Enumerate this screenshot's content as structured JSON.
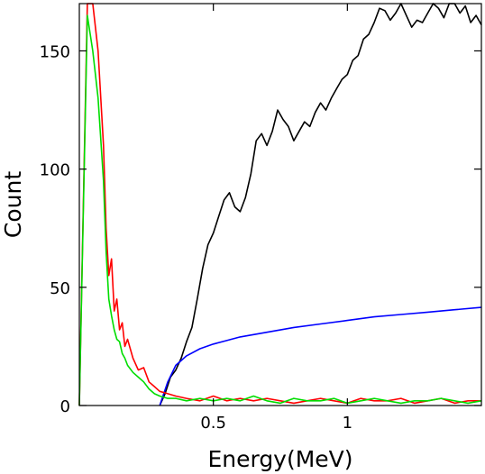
{
  "chart_data": {
    "type": "line",
    "title": "",
    "xlabel": "Energy(MeV)",
    "ylabel": "Count",
    "xlim": [
      0,
      1.5
    ],
    "ylim": [
      0,
      170
    ],
    "x_scale": "linear",
    "y_scale": "linear",
    "grid": false,
    "legend": "none",
    "x_ticks": [
      {
        "value": 0.5,
        "label": "0.5"
      },
      {
        "value": 1.0,
        "label": "1"
      }
    ],
    "y_ticks": [
      {
        "value": 0,
        "label": "0"
      },
      {
        "value": 50,
        "label": "50"
      },
      {
        "value": 100,
        "label": "100"
      },
      {
        "value": 150,
        "label": "150"
      }
    ],
    "series": [
      {
        "color": "#000000",
        "x": [
          0.3,
          0.32,
          0.34,
          0.36,
          0.38,
          0.4,
          0.42,
          0.44,
          0.46,
          0.48,
          0.5,
          0.52,
          0.54,
          0.56,
          0.58,
          0.6,
          0.62,
          0.64,
          0.66,
          0.68,
          0.7,
          0.72,
          0.74,
          0.76,
          0.78,
          0.8,
          0.82,
          0.84,
          0.86,
          0.88,
          0.9,
          0.92,
          0.94,
          0.96,
          0.98,
          1.0,
          1.02,
          1.04,
          1.06,
          1.08,
          1.1,
          1.12,
          1.14,
          1.16,
          1.18,
          1.2,
          1.22,
          1.24,
          1.26,
          1.28,
          1.3,
          1.32,
          1.34,
          1.36,
          1.38,
          1.4,
          1.42,
          1.44,
          1.46,
          1.48,
          1.5
        ],
        "y": [
          0,
          5,
          12,
          15,
          20,
          27,
          33,
          45,
          58,
          68,
          73,
          80,
          87,
          90,
          84,
          82,
          88,
          98,
          112,
          115,
          110,
          116,
          125,
          121,
          118,
          112,
          116,
          120,
          118,
          124,
          128,
          125,
          130,
          134,
          138,
          140,
          146,
          148,
          155,
          157,
          162,
          168,
          167,
          163,
          166,
          170,
          165,
          160,
          163,
          162,
          166,
          170,
          168,
          164,
          170,
          171,
          166,
          169,
          162,
          165,
          161
        ]
      },
      {
        "color": "#0000ff",
        "x": [
          0.3,
          0.33,
          0.36,
          0.4,
          0.45,
          0.5,
          0.55,
          0.6,
          0.7,
          0.8,
          0.9,
          1.0,
          1.1,
          1.2,
          1.3,
          1.4,
          1.5
        ],
        "y": [
          0,
          10,
          17,
          21,
          24,
          26,
          27.5,
          29,
          31,
          33,
          34.5,
          36,
          37.5,
          38.5,
          39.5,
          40.5,
          41.5
        ]
      },
      {
        "color": "#ff0000",
        "x": [
          0.0,
          0.03,
          0.05,
          0.07,
          0.09,
          0.1,
          0.11,
          0.12,
          0.13,
          0.14,
          0.15,
          0.16,
          0.17,
          0.18,
          0.2,
          0.22,
          0.24,
          0.26,
          0.28,
          0.3,
          0.33,
          0.36,
          0.4,
          0.45,
          0.5,
          0.55,
          0.6,
          0.65,
          0.7,
          0.75,
          0.8,
          0.85,
          0.9,
          0.95,
          1.0,
          1.05,
          1.1,
          1.15,
          1.2,
          1.25,
          1.3,
          1.35,
          1.4,
          1.45,
          1.5
        ],
        "y": [
          0,
          170,
          170,
          150,
          110,
          75,
          55,
          62,
          40,
          45,
          32,
          35,
          25,
          28,
          20,
          15,
          16,
          10,
          8,
          6,
          5,
          4,
          3,
          2,
          4,
          2,
          3,
          2,
          3,
          2,
          1,
          2,
          3,
          2,
          1,
          3,
          2,
          2,
          3,
          1,
          2,
          3,
          1,
          2,
          2
        ]
      },
      {
        "color": "#00dd00",
        "x": [
          0.0,
          0.03,
          0.05,
          0.07,
          0.09,
          0.1,
          0.11,
          0.12,
          0.13,
          0.14,
          0.15,
          0.16,
          0.17,
          0.18,
          0.2,
          0.22,
          0.24,
          0.26,
          0.28,
          0.3,
          0.33,
          0.36,
          0.4,
          0.45,
          0.5,
          0.55,
          0.6,
          0.65,
          0.7,
          0.75,
          0.8,
          0.85,
          0.9,
          0.95,
          1.0,
          1.05,
          1.1,
          1.15,
          1.2,
          1.25,
          1.3,
          1.35,
          1.4,
          1.45,
          1.5
        ],
        "y": [
          0,
          165,
          150,
          130,
          95,
          65,
          45,
          38,
          32,
          28,
          27,
          22,
          20,
          17,
          14,
          12,
          10,
          7,
          5,
          4,
          3,
          3,
          2,
          3,
          2,
          3,
          2,
          4,
          2,
          1,
          3,
          2,
          2,
          3,
          1,
          2,
          3,
          2,
          1,
          2,
          2,
          3,
          2,
          1,
          2
        ]
      }
    ]
  }
}
